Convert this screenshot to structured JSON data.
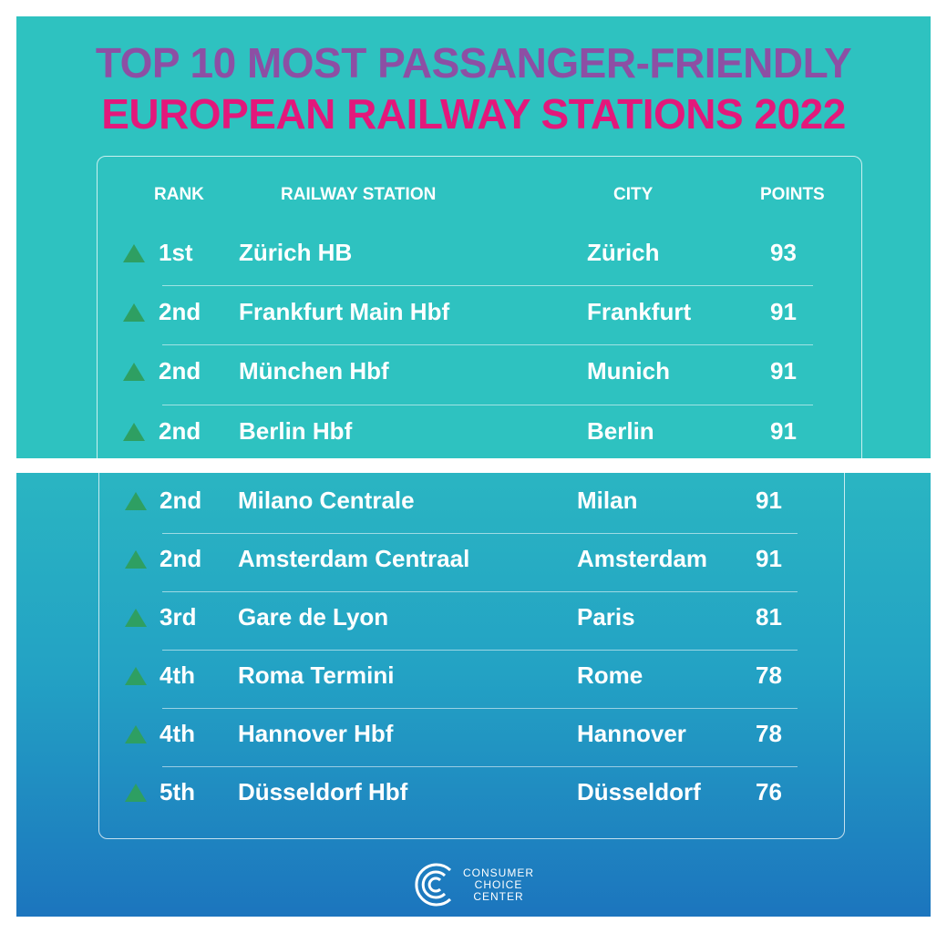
{
  "title": {
    "line1": "TOP 10 MOST PASSANGER-FRIENDLY",
    "line2": "EUROPEAN RAILWAY STATIONS 2022"
  },
  "colors": {
    "title_line1": "#8d4fa4",
    "title_line2": "#e3187b",
    "background_top": "#2ec2c0",
    "background_bottom": "#1c75be",
    "rank_arrow": "#2e9f62"
  },
  "table": {
    "headers": {
      "rank": "RANK",
      "station": "RAILWAY STATION",
      "city": "CITY",
      "points": "POINTS"
    },
    "rows": [
      {
        "rank": "1st",
        "station": "Zürich HB",
        "city": "Zürich",
        "points": "93"
      },
      {
        "rank": "2nd",
        "station": "Frankfurt Main Hbf",
        "city": "Frankfurt",
        "points": "91"
      },
      {
        "rank": "2nd",
        "station": "München Hbf",
        "city": "Munich",
        "points": "91"
      },
      {
        "rank": "2nd",
        "station": "Berlin Hbf",
        "city": "Berlin",
        "points": "91"
      },
      {
        "rank": "2nd",
        "station": "Milano Centrale",
        "city": "Milan",
        "points": "91"
      },
      {
        "rank": "2nd",
        "station": "Amsterdam Centraal",
        "city": "Amsterdam",
        "points": "91"
      },
      {
        "rank": "3rd",
        "station": "Gare de Lyon",
        "city": "Paris",
        "points": "81"
      },
      {
        "rank": "4th",
        "station": "Roma Termini",
        "city": "Rome",
        "points": "78"
      },
      {
        "rank": "4th",
        "station": "Hannover Hbf",
        "city": "Hannover",
        "points": "78"
      },
      {
        "rank": "5th",
        "station": "Düsseldorf Hbf",
        "city": "Düsseldorf",
        "points": "76"
      }
    ]
  },
  "rank_icon": "triangle-up-icon",
  "logo": {
    "line1": "CONSUMER",
    "line2": "CHOICE",
    "line3": "CENTER"
  }
}
